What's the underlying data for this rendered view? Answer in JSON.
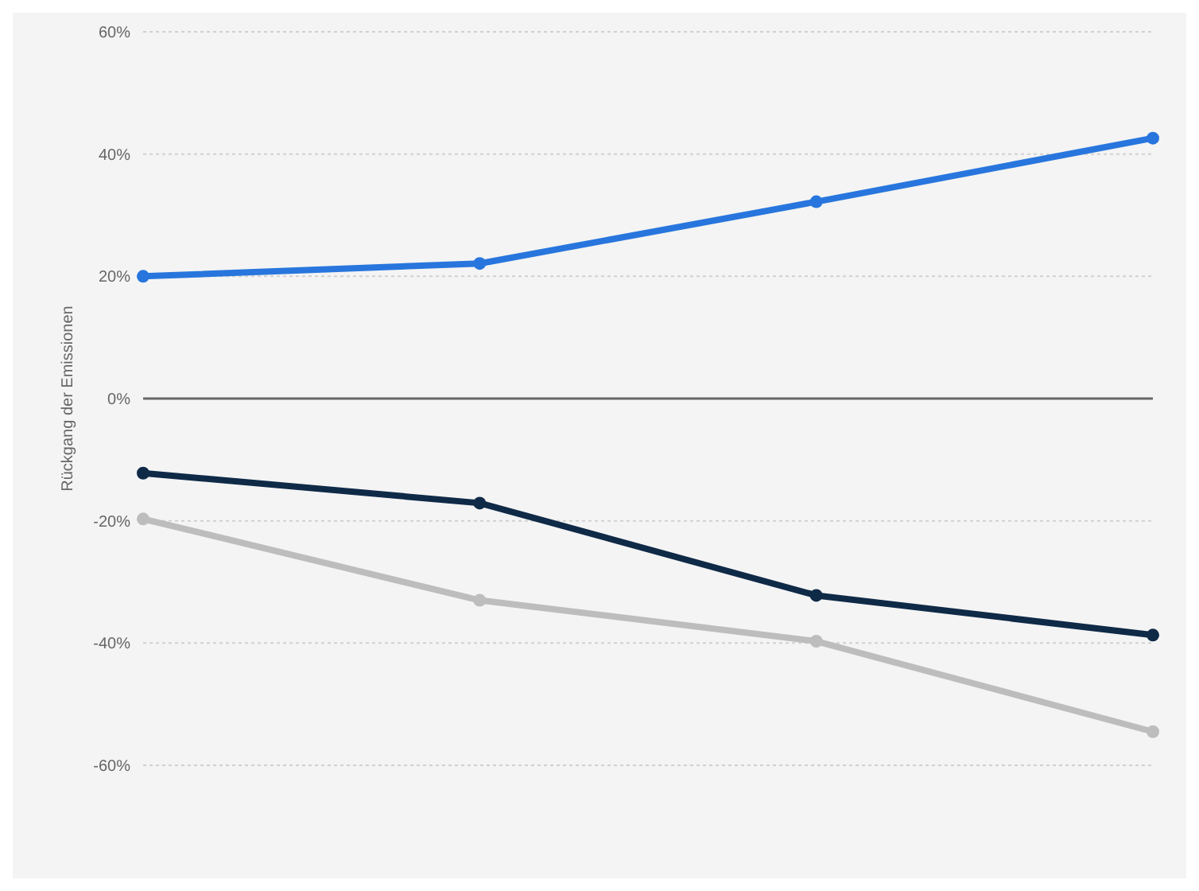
{
  "chart_data": {
    "type": "line",
    "ylabel": "Rückgang der Emissionen",
    "categories": [
      null,
      null,
      null,
      null
    ],
    "series": [
      {
        "color": "#2876dd",
        "values": [
          20,
          22.1,
          32.2,
          42.6
        ]
      },
      {
        "color": "#0f2a47",
        "values": [
          -12.2,
          -17.1,
          -32.2,
          -38.7
        ]
      },
      {
        "color": "#bdbdbd",
        "values": [
          -19.7,
          -33,
          -39.7,
          -54.5
        ]
      }
    ],
    "ylim": [
      -60,
      60
    ],
    "yticks": [
      {
        "value": -60,
        "label": "-60%"
      },
      {
        "value": -40,
        "label": "-40%"
      },
      {
        "value": -20,
        "label": "-20%"
      },
      {
        "value": 0,
        "label": "0%"
      },
      {
        "value": 20,
        "label": "20%"
      },
      {
        "value": 40,
        "label": "40%"
      },
      {
        "value": 60,
        "label": "60%"
      }
    ],
    "ref_lines": [
      {
        "axis": "y",
        "value": 0,
        "color": "#666666"
      }
    ],
    "grid": "y",
    "marker": "circle",
    "line_style": "solid",
    "legend": false
  }
}
